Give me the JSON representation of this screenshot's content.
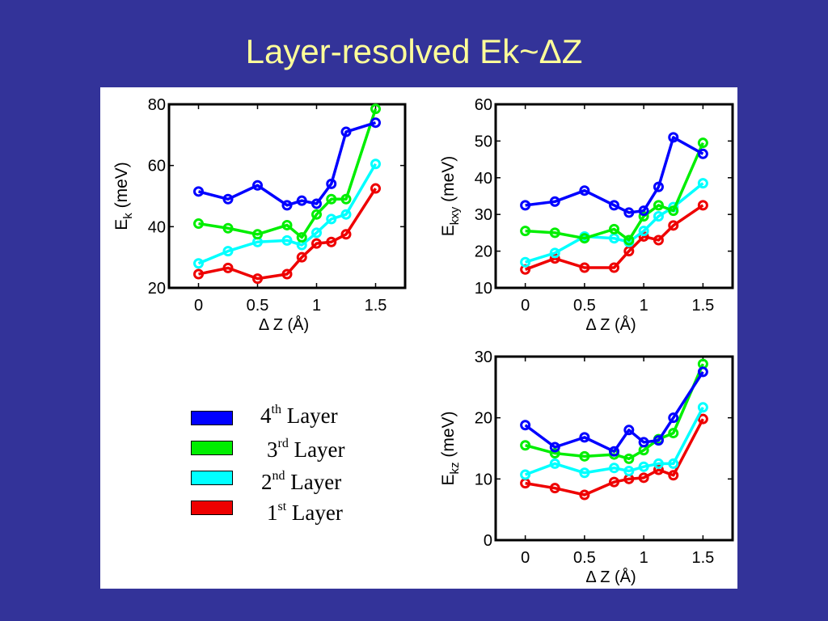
{
  "slide": {
    "title": "Layer-resolved Ek~ΔZ"
  },
  "colors": {
    "background": "#333399",
    "title": "#ffff99",
    "layer4": "#0000ff",
    "layer3": "#00ee00",
    "layer2": "#00ffff",
    "layer1": "#ee0000"
  },
  "legend": [
    {
      "num": "4",
      "sup": "th",
      "word": "Layer",
      "color": "#0000ff"
    },
    {
      "num": "3",
      "sup": "rd",
      "word": "Layer",
      "color": "#00ee00"
    },
    {
      "num": "2",
      "sup": "nd",
      "word": "Layer",
      "color": "#00ffff"
    },
    {
      "num": "1",
      "sup": "st",
      "word": "Layer",
      "color": "#ee0000"
    }
  ],
  "chart_data": [
    {
      "type": "line",
      "ylabel_main": "E",
      "ylabel_sub": "k",
      "ylabel_unit": " (meV)",
      "xlabel": "Δ Z (Å)",
      "xlim": [
        -0.25,
        1.75
      ],
      "ylim": [
        20,
        80
      ],
      "xticks": [
        0,
        0.5,
        1,
        1.5
      ],
      "xtick_labels": [
        "0",
        "0.5",
        "1",
        "1.5"
      ],
      "yticks": [
        20,
        40,
        60,
        80
      ],
      "ytick_labels": [
        "20",
        "40",
        "60",
        "80"
      ],
      "x": [
        0,
        0.25,
        0.5,
        0.75,
        0.875,
        1.0,
        1.125,
        1.25,
        1.5
      ],
      "series": [
        {
          "name": "4th Layer",
          "color": "#0000ff",
          "values": [
            51.5,
            49,
            53.5,
            47,
            48.5,
            47.5,
            54,
            71,
            74
          ]
        },
        {
          "name": "3rd Layer",
          "color": "#00ee00",
          "values": [
            41,
            39.5,
            37.5,
            40.5,
            36.5,
            44,
            49,
            49,
            78.5
          ]
        },
        {
          "name": "2nd Layer",
          "color": "#00ffff",
          "values": [
            28,
            32,
            35,
            35.5,
            34,
            38,
            42.5,
            44,
            60.5
          ]
        },
        {
          "name": "1st Layer",
          "color": "#ee0000",
          "values": [
            24.5,
            26.5,
            23,
            24.5,
            30,
            34.5,
            35,
            37.5,
            52.5
          ]
        }
      ]
    },
    {
      "type": "line",
      "ylabel_main": "E",
      "ylabel_sub": "kxy",
      "ylabel_unit": " (meV)",
      "xlabel": "Δ Z (Å)",
      "xlim": [
        -0.25,
        1.75
      ],
      "ylim": [
        10,
        60
      ],
      "xticks": [
        0,
        0.5,
        1,
        1.5
      ],
      "xtick_labels": [
        "0",
        "0.5",
        "1",
        "1.5"
      ],
      "yticks": [
        10,
        20,
        30,
        40,
        50,
        60
      ],
      "ytick_labels": [
        "10",
        "20",
        "30",
        "40",
        "50",
        "60"
      ],
      "x": [
        0,
        0.25,
        0.5,
        0.75,
        0.875,
        1.0,
        1.125,
        1.25,
        1.5
      ],
      "series": [
        {
          "name": "4th Layer",
          "color": "#0000ff",
          "values": [
            32.5,
            33.5,
            36.5,
            32.5,
            30.5,
            31,
            37.5,
            51,
            46.5
          ]
        },
        {
          "name": "3rd Layer",
          "color": "#00ee00",
          "values": [
            25.5,
            25,
            23.5,
            26,
            23,
            29.5,
            32.5,
            31,
            49.5
          ]
        },
        {
          "name": "2nd Layer",
          "color": "#00ffff",
          "values": [
            17,
            19.5,
            24,
            23.5,
            22.5,
            25.5,
            29.5,
            32,
            38.5
          ]
        },
        {
          "name": "1st Layer",
          "color": "#ee0000",
          "values": [
            15,
            18,
            15.5,
            15.5,
            20,
            24,
            23,
            27,
            32.5
          ]
        }
      ]
    },
    {
      "type": "line",
      "ylabel_main": "E",
      "ylabel_sub": "kz",
      "ylabel_unit": " (meV)",
      "xlabel": "Δ Z (Å)",
      "xlim": [
        -0.25,
        1.75
      ],
      "ylim": [
        0,
        30
      ],
      "xticks": [
        0,
        0.5,
        1,
        1.5
      ],
      "xtick_labels": [
        "0",
        "0.5",
        "1",
        "1.5"
      ],
      "yticks": [
        0,
        10,
        20,
        30
      ],
      "ytick_labels": [
        "0",
        "10",
        "20",
        "30"
      ],
      "x": [
        0,
        0.25,
        0.5,
        0.75,
        0.875,
        1.0,
        1.125,
        1.25,
        1.5
      ],
      "series": [
        {
          "name": "4th Layer",
          "color": "#0000ff",
          "values": [
            18.8,
            15.2,
            16.8,
            14.5,
            18,
            16,
            16.3,
            20,
            27.5
          ]
        },
        {
          "name": "3rd Layer",
          "color": "#00ee00",
          "values": [
            15.5,
            14.2,
            13.7,
            14,
            13.3,
            14.7,
            16.5,
            17.5,
            28.8
          ]
        },
        {
          "name": "2nd Layer",
          "color": "#00ffff",
          "values": [
            10.7,
            12.5,
            11,
            11.8,
            11.3,
            12,
            12.5,
            12.5,
            21.7
          ]
        },
        {
          "name": "1st Layer",
          "color": "#ee0000",
          "values": [
            9.3,
            8.5,
            7.4,
            9.5,
            10,
            10.2,
            11.5,
            10.6,
            19.8
          ]
        }
      ]
    }
  ]
}
